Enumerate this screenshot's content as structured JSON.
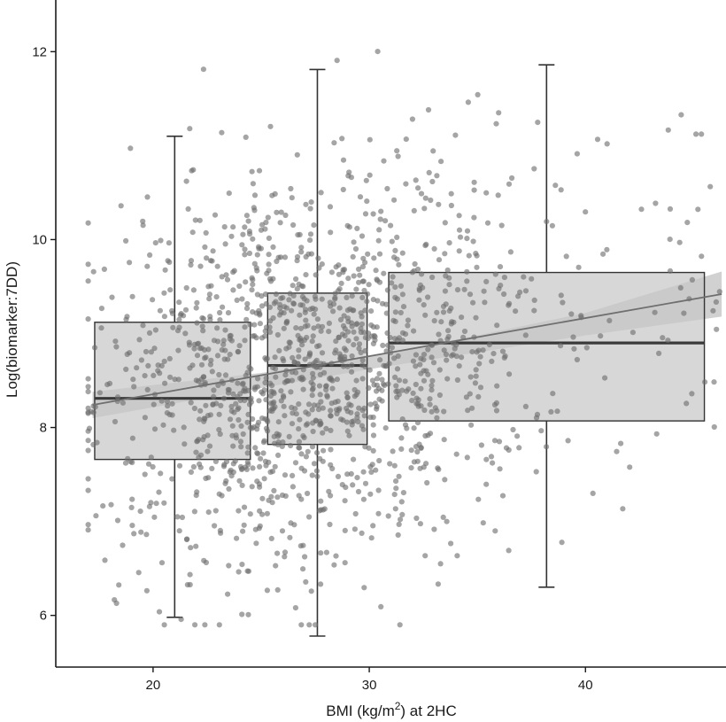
{
  "chart_data": {
    "type": "scatter",
    "xlabel_parts": {
      "pre": "BMI (kg/m",
      "sup": "2",
      "post": ") at 2HC"
    },
    "ylabel": "Log(biomarker:7DD)",
    "xlim": [
      15.5,
      46.5
    ],
    "ylim": [
      5.45,
      12.55
    ],
    "x_ticks": [
      20,
      30,
      40
    ],
    "y_ticks": [
      6,
      8,
      10,
      12
    ],
    "grid": false,
    "colors": {
      "points": "#6e6e6e",
      "box_fill": "#c8c8c8",
      "box_stroke": "#333333",
      "median": "#3a3a3a",
      "whisker": "#333333",
      "trend_line": "#6f6f6f",
      "confidence_band": "#b3b3b3",
      "axis": "#1a1a1a"
    },
    "boxes": [
      {
        "x_range": [
          17.3,
          24.5
        ],
        "center": 21.0,
        "whisker_low": 5.98,
        "q1": 7.66,
        "median": 8.31,
        "q3": 9.12,
        "whisker_high": 11.1
      },
      {
        "x_range": [
          25.3,
          29.9
        ],
        "center": 27.6,
        "whisker_low": 5.78,
        "q1": 7.82,
        "median": 8.66,
        "q3": 9.43,
        "whisker_high": 11.81
      },
      {
        "x_range": [
          30.9,
          45.5
        ],
        "center": 38.2,
        "whisker_low": 6.3,
        "q1": 8.07,
        "median": 8.9,
        "q3": 9.65,
        "whisker_high": 11.86
      }
    ],
    "trend_line": {
      "x": [
        17.2,
        46.3
      ],
      "y": [
        8.24,
        9.42
      ]
    },
    "confidence_band": {
      "x": [
        17.2,
        25,
        30,
        35,
        40,
        46.3
      ],
      "upper": [
        8.38,
        8.58,
        8.76,
        8.98,
        9.22,
        9.66
      ],
      "lower": [
        8.1,
        8.42,
        8.62,
        8.8,
        8.98,
        9.18
      ]
    },
    "scatter": {
      "n_points": 1500,
      "x_mean": 27.0,
      "x_sd": 4.7,
      "x_range": [
        17.0,
        46.3
      ],
      "y_mean": 8.55,
      "y_sd": 1.05,
      "y_range": [
        5.9,
        12.15
      ],
      "trend": "y increases with x along the trend line"
    }
  }
}
